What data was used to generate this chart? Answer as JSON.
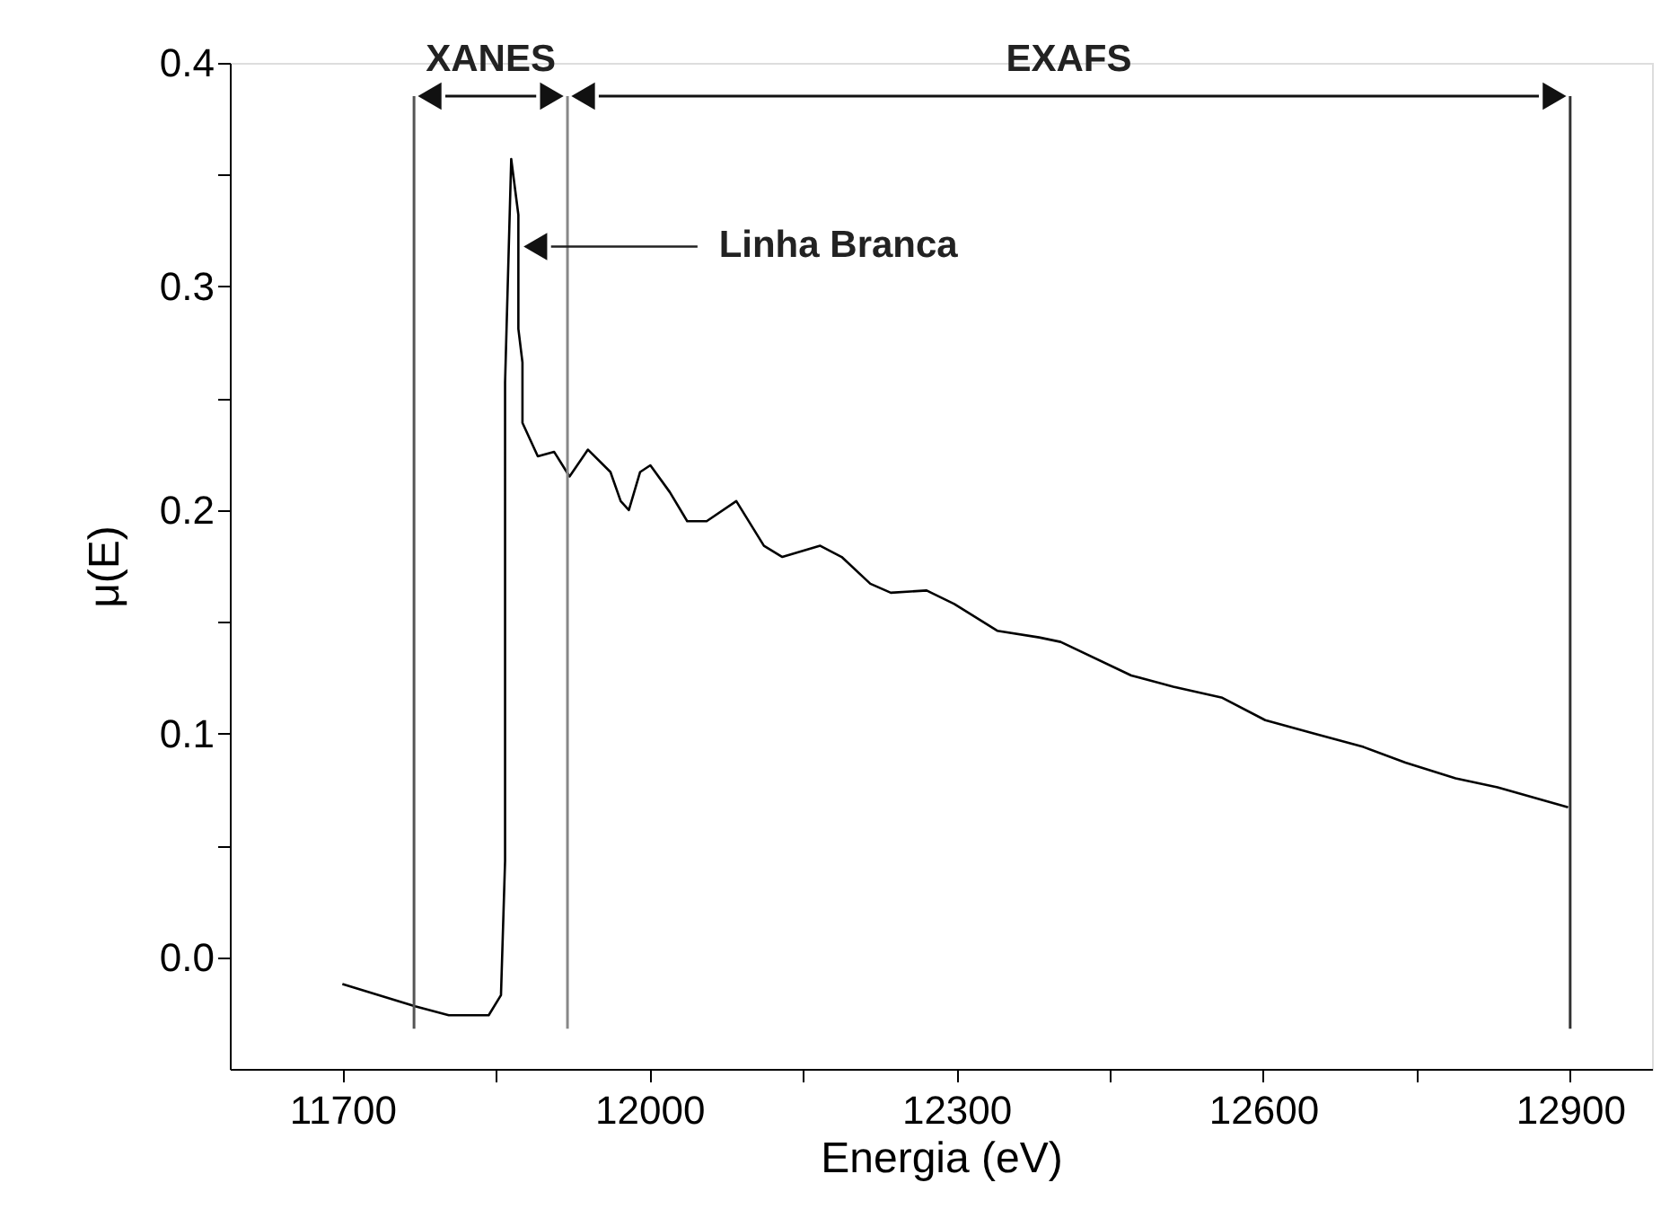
{
  "chart_data": {
    "type": "line",
    "xlabel": "Energia (eV)",
    "ylabel": "μ(E)",
    "x": [
      11700,
      11771,
      11804,
      11843,
      11855,
      11859,
      11859,
      11865,
      11872,
      11872,
      11876,
      11876,
      11891,
      11907,
      11922,
      11940,
      11962,
      11972,
      11980,
      11991,
      12001,
      12020,
      12037,
      12056,
      12085,
      12112,
      12130,
      12167,
      12188,
      12216,
      12236,
      12271,
      12298,
      12340,
      12381,
      12402,
      12471,
      12512,
      12560,
      12602,
      12650,
      12698,
      12739,
      12788,
      12829,
      12898
    ],
    "series": [
      {
        "color": "#000000",
        "values": [
          -0.012,
          -0.022,
          -0.026,
          -0.026,
          -0.017,
          0.043,
          0.257,
          0.357,
          0.332,
          0.281,
          0.266,
          0.239,
          0.224,
          0.226,
          0.215,
          0.227,
          0.217,
          0.204,
          0.2,
          0.217,
          0.22,
          0.208,
          0.195,
          0.195,
          0.204,
          0.184,
          0.179,
          0.184,
          0.179,
          0.167,
          0.163,
          0.164,
          0.158,
          0.146,
          0.143,
          0.141,
          0.126,
          0.121,
          0.116,
          0.106,
          0.1,
          0.094,
          0.087,
          0.08,
          0.076,
          0.067
        ]
      }
    ],
    "xlim": [
      11590,
      12980
    ],
    "xticks": [
      11700,
      {
        "value": 11850,
        "label": null
      },
      12000,
      {
        "value": 12150,
        "label": null
      },
      12300,
      {
        "value": 12450,
        "label": null
      },
      12600,
      {
        "value": 12750,
        "label": null
      },
      12900
    ],
    "ylim": [
      -0.05,
      0.4
    ],
    "yticks": [
      {
        "value": 0.0,
        "label": "0.0"
      },
      {
        "value": 0.05,
        "label": null
      },
      {
        "value": 0.1,
        "label": "0.1"
      },
      {
        "value": 0.15,
        "label": null
      },
      {
        "value": 0.2,
        "label": "0.2"
      },
      {
        "value": 0.25,
        "label": null
      },
      {
        "value": 0.3,
        "label": "0.3"
      },
      {
        "value": 0.35,
        "label": null
      },
      {
        "value": 0.4,
        "label": "0.4"
      }
    ],
    "grid": false,
    "legend": false,
    "marker": "none",
    "line_style": "solid",
    "ref_lines": [
      {
        "axis": "x",
        "value": 11770,
        "color": "#555555"
      },
      {
        "axis": "x",
        "value": 11920,
        "color": "#888888"
      },
      {
        "axis": "x",
        "value": 12900,
        "color": "#333333"
      }
    ],
    "annotations": [
      "XANES",
      "EXAFS",
      "Linha Branca"
    ]
  }
}
